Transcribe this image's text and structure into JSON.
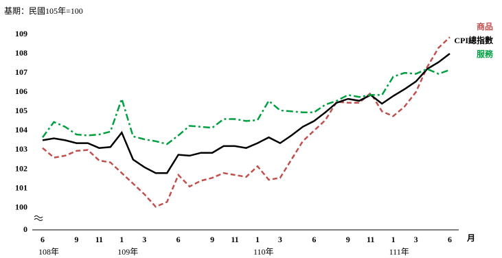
{
  "chart_data": {
    "type": "line",
    "subtitle": "基期：民國105年=100",
    "categories": [
      "6",
      null,
      null,
      "9",
      null,
      "11",
      null,
      "1",
      null,
      "3",
      null,
      null,
      "6",
      null,
      null,
      "9",
      null,
      "11",
      null,
      "1",
      null,
      "3",
      null,
      null,
      "6",
      null,
      null,
      "9",
      null,
      "11",
      null,
      "1",
      null,
      "3",
      null,
      null,
      "6"
    ],
    "year_labels": [
      "108年",
      "109年",
      "110年",
      "111年"
    ],
    "x_label": "月",
    "series": [
      {
        "name": "商品",
        "color": "#c0504d",
        "dash": "dashed",
        "values": [
          103.1,
          102.6,
          102.7,
          102.95,
          103.0,
          102.45,
          102.35,
          101.8,
          101.25,
          100.7,
          100.05,
          100.3,
          101.7,
          101.1,
          101.4,
          101.55,
          101.8,
          101.7,
          101.6,
          102.15,
          101.45,
          101.55,
          102.5,
          103.45,
          104.0,
          104.55,
          105.5,
          105.45,
          105.45,
          105.95,
          105.0,
          104.75,
          105.25,
          106.0,
          107.3,
          108.3,
          108.85
        ]
      },
      {
        "name": "CPI總指數",
        "color": "#000000",
        "dash": "solid",
        "values": [
          103.5,
          103.6,
          103.5,
          103.35,
          103.35,
          103.1,
          103.15,
          103.9,
          102.5,
          102.1,
          101.8,
          101.8,
          102.75,
          102.7,
          102.85,
          102.85,
          103.2,
          103.2,
          103.1,
          103.35,
          103.65,
          103.35,
          103.75,
          104.2,
          104.5,
          104.95,
          105.45,
          105.65,
          105.55,
          105.85,
          105.4,
          105.8,
          106.15,
          106.55,
          107.2,
          107.55,
          108.0
        ]
      },
      {
        "name": "服務",
        "color": "#00a040",
        "dash": "dashdot",
        "values": [
          103.65,
          104.45,
          104.2,
          103.8,
          103.75,
          103.8,
          103.95,
          105.65,
          103.7,
          103.55,
          103.45,
          103.3,
          103.75,
          104.25,
          104.2,
          104.15,
          104.6,
          104.6,
          104.5,
          104.55,
          105.55,
          105.05,
          105.0,
          104.95,
          104.95,
          105.35,
          105.55,
          105.85,
          105.75,
          105.85,
          105.85,
          106.8,
          107.0,
          106.95,
          107.2,
          106.95,
          107.15
        ]
      }
    ],
    "ylim": [
      98.85,
      109
    ],
    "yticks": [
      100,
      101,
      102,
      103,
      104,
      105,
      106,
      107,
      108,
      109
    ],
    "baseline_label": "0",
    "legend": "top-right",
    "grid": false
  }
}
